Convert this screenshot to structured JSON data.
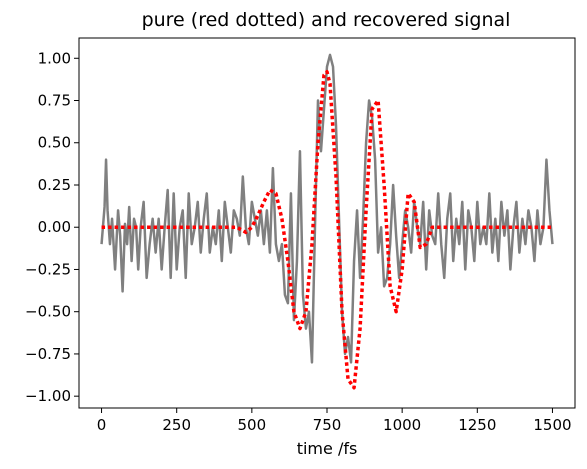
{
  "chart_data": {
    "type": "line",
    "title": "pure (red dotted) and recovered signal",
    "xlabel": "time /fs",
    "ylabel": "",
    "xlim": [
      -75,
      1575
    ],
    "ylim": [
      -1.07,
      1.12
    ],
    "x_ticks": [
      0,
      250,
      500,
      750,
      1000,
      1250,
      1500
    ],
    "x_tick_labels": [
      "0",
      "250",
      "500",
      "750",
      "1000",
      "1250",
      "1500"
    ],
    "y_ticks": [
      -1.0,
      -0.75,
      -0.5,
      -0.25,
      0.0,
      0.25,
      0.5,
      0.75,
      1.0
    ],
    "y_tick_labels": [
      "−1.00",
      "−0.75",
      "−0.50",
      "−0.25",
      "0.00",
      "0.25",
      "0.50",
      "0.75",
      "1.00"
    ],
    "grid": false,
    "series": [
      {
        "color": "#808080",
        "style": "solid",
        "x": [
          0,
          10,
          15,
          20,
          28,
          35,
          45,
          55,
          62,
          70,
          78,
          85,
          92,
          100,
          108,
          115,
          122,
          130,
          140,
          150,
          160,
          170,
          180,
          190,
          200,
          210,
          220,
          230,
          240,
          250,
          260,
          270,
          280,
          290,
          300,
          310,
          320,
          330,
          340,
          350,
          360,
          370,
          380,
          390,
          400,
          410,
          420,
          430,
          440,
          450,
          460,
          470,
          480,
          490,
          500,
          510,
          520,
          530,
          540,
          550,
          560,
          570,
          580,
          590,
          600,
          610,
          620,
          630,
          640,
          650,
          660,
          670,
          680,
          690,
          700,
          710,
          720,
          730,
          740,
          750,
          760,
          770,
          780,
          790,
          800,
          810,
          820,
          830,
          840,
          850,
          860,
          870,
          880,
          890,
          900,
          910,
          920,
          930,
          940,
          950,
          960,
          970,
          980,
          990,
          1000,
          1010,
          1020,
          1030,
          1040,
          1050,
          1060,
          1070,
          1080,
          1090,
          1100,
          1110,
          1120,
          1130,
          1140,
          1150,
          1160,
          1170,
          1180,
          1190,
          1200,
          1210,
          1220,
          1230,
          1240,
          1250,
          1260,
          1270,
          1280,
          1290,
          1300,
          1310,
          1320,
          1330,
          1340,
          1350,
          1360,
          1370,
          1380,
          1390,
          1400,
          1410,
          1420,
          1430,
          1440,
          1450,
          1460,
          1470,
          1480,
          1490,
          1500
        ],
        "y": [
          -0.1,
          0.12,
          0.4,
          0.1,
          -0.1,
          0.05,
          -0.25,
          0.1,
          -0.05,
          -0.38,
          0.02,
          -0.1,
          0.12,
          -0.2,
          0.05,
          0.0,
          -0.25,
          0.0,
          0.15,
          -0.3,
          -0.1,
          0.05,
          -0.15,
          0.05,
          -0.25,
          0.0,
          0.22,
          -0.3,
          0.2,
          -0.25,
          0.0,
          0.1,
          -0.3,
          0.2,
          -0.1,
          0.0,
          0.15,
          -0.15,
          0.05,
          0.2,
          -0.15,
          0.0,
          -0.1,
          0.1,
          -0.2,
          0.15,
          0.0,
          -0.15,
          0.1,
          0.05,
          -0.05,
          0.3,
          0.0,
          -0.1,
          0.15,
          0.05,
          -0.05,
          0.1,
          -0.1,
          0.1,
          -0.15,
          0.35,
          -0.1,
          -0.2,
          -0.1,
          -0.4,
          -0.45,
          0.2,
          -0.55,
          -0.2,
          0.45,
          -0.4,
          -0.6,
          -0.5,
          -0.8,
          0.0,
          0.75,
          0.45,
          0.7,
          0.95,
          1.02,
          0.95,
          0.6,
          0.05,
          -0.5,
          -0.75,
          -0.65,
          -0.8,
          -0.2,
          0.1,
          -0.3,
          0.05,
          0.5,
          0.75,
          0.65,
          0.4,
          -0.15,
          0.0,
          -0.35,
          -0.3,
          -0.1,
          0.25,
          -0.05,
          -0.3,
          -0.1,
          0.1,
          0.0,
          -0.15,
          0.15,
          0.0,
          -0.1,
          0.15,
          -0.25,
          0.1,
          -0.05,
          -0.1,
          0.2,
          -0.1,
          -0.3,
          0.05,
          0.2,
          -0.2,
          0.05,
          -0.1,
          0.15,
          -0.25,
          0.1,
          0.0,
          -0.2,
          0.15,
          -0.1,
          0.0,
          -0.1,
          0.2,
          -0.15,
          0.05,
          -0.2,
          0.15,
          -0.05,
          0.1,
          -0.25,
          0.0,
          0.15,
          -0.15,
          0.05,
          -0.1,
          0.1,
          0.0,
          -0.2,
          0.1,
          -0.1,
          0.0,
          0.4,
          0.1,
          -0.1
        ]
      },
      {
        "color": "#ff0000",
        "style": "dotted",
        "x": [
          0,
          50,
          100,
          150,
          200,
          250,
          300,
          350,
          400,
          450,
          480,
          500,
          520,
          540,
          560,
          580,
          600,
          620,
          640,
          660,
          680,
          700,
          720,
          740,
          750,
          760,
          780,
          800,
          820,
          840,
          860,
          880,
          900,
          920,
          940,
          960,
          980,
          1000,
          1020,
          1040,
          1060,
          1080,
          1100,
          1150,
          1200,
          1250,
          1300,
          1350,
          1400,
          1450,
          1500
        ],
        "y": [
          0.0,
          0.0,
          0.0,
          0.0,
          0.0,
          0.0,
          0.0,
          0.0,
          0.0,
          0.0,
          -0.03,
          0.0,
          0.07,
          0.15,
          0.22,
          0.2,
          0.05,
          -0.2,
          -0.5,
          -0.6,
          -0.5,
          -0.1,
          0.5,
          0.9,
          0.92,
          0.85,
          0.3,
          -0.5,
          -0.9,
          -0.95,
          -0.6,
          0.1,
          0.7,
          0.75,
          0.25,
          -0.35,
          -0.5,
          -0.25,
          0.2,
          0.15,
          -0.12,
          -0.1,
          0.0,
          0.0,
          0.0,
          0.0,
          0.0,
          0.0,
          0.0,
          0.0,
          0.0
        ]
      }
    ]
  }
}
